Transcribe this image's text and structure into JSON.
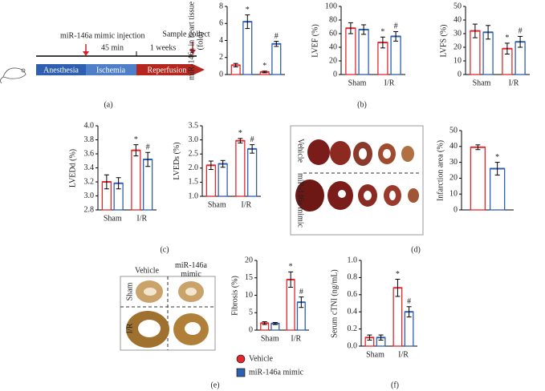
{
  "panel_labels": [
    "(a)",
    "(b)",
    "(c)",
    "(d)",
    "(e)",
    "(f)"
  ],
  "timeline": {
    "injection": "miR-146a mimic injection",
    "interval1": "45 min",
    "interval2": "1 weeks",
    "sample": "Sample collect",
    "phases": [
      "Anesthesia",
      "Ischemia",
      "Reperfusion"
    ]
  },
  "infarct_images": {
    "rows": [
      "Vehicle",
      "miR-146a mimic"
    ]
  },
  "fibrosis_images": {
    "columns": [
      "Vehicle",
      "miR-146a mimic"
    ],
    "rows": [
      "Sham",
      "I/R"
    ]
  },
  "chart_data": [
    {
      "type": "bar",
      "y_label": "miR-146a in heart tissue (fold)",
      "categories": [
        null,
        null
      ],
      "series": [
        {
          "color": "#e0282e",
          "values": [
            1.1,
            0.3
          ],
          "errors": [
            0.2,
            0.1
          ],
          "marks": [
            null,
            "*"
          ]
        },
        {
          "color": "#2f5fb0",
          "values": [
            6.2,
            3.6
          ],
          "errors": [
            0.8,
            0.3
          ],
          "marks": [
            "*",
            "#"
          ]
        }
      ],
      "ylim": [
        0,
        8
      ],
      "yticks": [
        0,
        2,
        4,
        6,
        8
      ]
    },
    {
      "type": "bar",
      "y_label": "LVEF (%)",
      "categories": [
        "Sham",
        "I/R"
      ],
      "series": [
        {
          "color": "#e0282e",
          "values": [
            68,
            47
          ],
          "errors": [
            8,
            8
          ],
          "marks": [
            null,
            "*"
          ]
        },
        {
          "color": "#2f5fb0",
          "values": [
            66,
            56
          ],
          "errors": [
            7,
            7
          ],
          "marks": [
            null,
            "#"
          ]
        }
      ],
      "ylim": [
        0,
        100
      ],
      "yticks": [
        0,
        20,
        40,
        60,
        80,
        100
      ]
    },
    {
      "type": "bar",
      "y_label": "LVFS (%)",
      "categories": [
        "Sham",
        "I/R"
      ],
      "series": [
        {
          "color": "#e0282e",
          "values": [
            32,
            19
          ],
          "errors": [
            5,
            4
          ],
          "marks": [
            null,
            "*"
          ]
        },
        {
          "color": "#2f5fb0",
          "values": [
            31,
            24
          ],
          "errors": [
            5,
            4
          ],
          "marks": [
            null,
            "#"
          ]
        }
      ],
      "ylim": [
        0,
        50
      ],
      "yticks": [
        0,
        10,
        20,
        30,
        40,
        50
      ]
    },
    {
      "type": "bar",
      "y_label": "LVEDd (%)",
      "categories": [
        "Sham",
        "I/R"
      ],
      "series": [
        {
          "color": "#e0282e",
          "values": [
            3.2,
            3.65
          ],
          "errors": [
            0.1,
            0.08
          ],
          "marks": [
            null,
            "*"
          ]
        },
        {
          "color": "#2f5fb0",
          "values": [
            3.18,
            3.52
          ],
          "errors": [
            0.08,
            0.1
          ],
          "marks": [
            null,
            "#"
          ]
        }
      ],
      "ylim": [
        2.8,
        4.0
      ],
      "yticks": [
        2.8,
        {
          "value": 3.0,
          "label": "3.0"
        },
        3.2,
        3.4,
        3.6,
        3.8,
        {
          "value": 4.0,
          "label": "4.0"
        }
      ]
    },
    {
      "type": "bar",
      "y_label": "LVEDs (%)",
      "categories": [
        "Sham",
        "I/R"
      ],
      "series": [
        {
          "color": "#e0282e",
          "values": [
            2.1,
            2.97
          ],
          "errors": [
            0.15,
            0.08
          ],
          "marks": [
            null,
            "*"
          ]
        },
        {
          "color": "#2f5fb0",
          "values": [
            2.15,
            2.68
          ],
          "errors": [
            0.12,
            0.15
          ],
          "marks": [
            null,
            "#"
          ]
        }
      ],
      "ylim": [
        1.0,
        3.5
      ],
      "yticks": [
        {
          "value": 1.0,
          "label": "1.0"
        },
        1.5,
        {
          "value": 2.0,
          "label": "2.0"
        },
        2.5,
        {
          "value": 3.0,
          "label": "3.0"
        },
        3.5
      ]
    },
    {
      "type": "bar",
      "y_label": "Infarction area (%)",
      "categories": [
        null
      ],
      "series": [
        {
          "color": "#e0282e",
          "values": [
            39.5
          ],
          "errors": [
            1.5
          ],
          "marks": [
            null
          ]
        },
        {
          "color": "#2f5fb0",
          "values": [
            26
          ],
          "errors": [
            4
          ],
          "marks": [
            "*"
          ]
        }
      ],
      "ylim": [
        0,
        50
      ],
      "yticks": [
        0,
        10,
        20,
        30,
        40,
        50
      ]
    },
    {
      "type": "bar",
      "y_label": "Fibrosis (%)",
      "categories": [
        "Sham",
        "I/R"
      ],
      "series": [
        {
          "name": "Vehicle",
          "color": "#e0282e",
          "values": [
            2,
            14.5
          ],
          "errors": [
            0.4,
            2.2
          ],
          "marks": [
            null,
            "*"
          ]
        },
        {
          "name": "miR-146a mimic",
          "color": "#2f5fb0",
          "values": [
            1.9,
            8
          ],
          "errors": [
            0.3,
            1.5
          ],
          "marks": [
            null,
            "#"
          ]
        }
      ],
      "ylim": [
        0,
        20
      ],
      "yticks": [
        0,
        5,
        10,
        15,
        20
      ]
    },
    {
      "type": "bar",
      "y_label": "Serum cTNI (ng/mL)",
      "categories": [
        "Sham",
        "I/R"
      ],
      "series": [
        {
          "color": "#e0282e",
          "values": [
            0.1,
            0.68
          ],
          "errors": [
            0.03,
            0.1
          ],
          "marks": [
            null,
            "*"
          ]
        },
        {
          "color": "#2f5fb0",
          "values": [
            0.1,
            0.4
          ],
          "errors": [
            0.03,
            0.06
          ],
          "marks": [
            null,
            "#"
          ]
        }
      ],
      "ylim": [
        0,
        1.0
      ],
      "yticks": [
        {
          "value": 0,
          "label": "0.0"
        },
        0.2,
        0.4,
        0.6,
        0.8,
        {
          "value": 1.0,
          "label": "1.0"
        }
      ]
    }
  ]
}
